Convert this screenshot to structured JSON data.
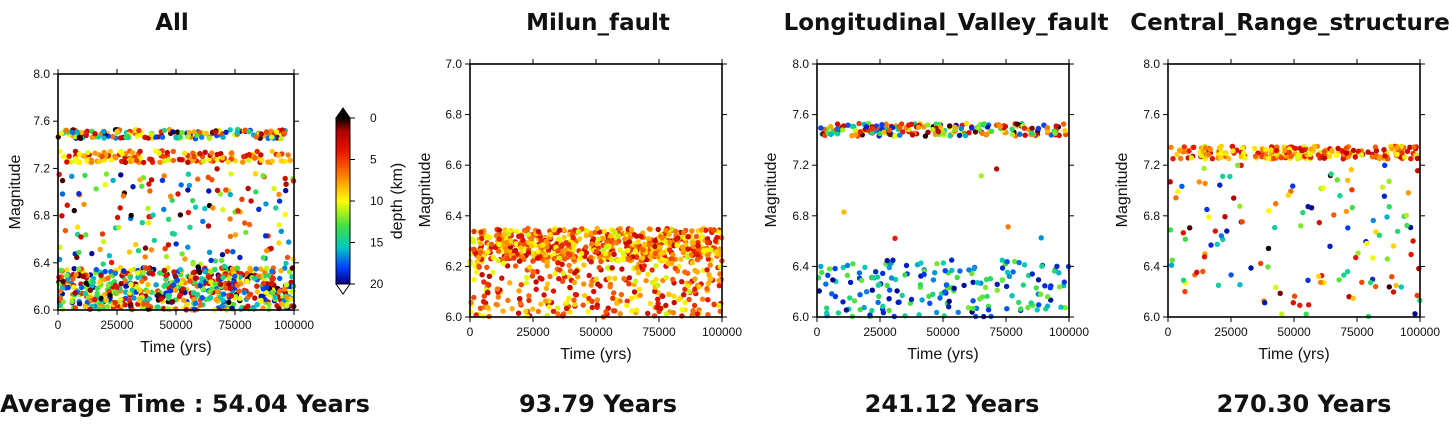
{
  "chart_data": [
    {
      "type": "scatter",
      "title": "All",
      "xlabel": "Time (yrs)",
      "ylabel": "Magnitude",
      "xlim": [
        0,
        100000
      ],
      "ylim": [
        6.0,
        8.0
      ],
      "xticks": [
        "0",
        "25000",
        "50000",
        "75000",
        "100000"
      ],
      "yticks": [
        "6.0",
        "6.4",
        "6.8",
        "7.2",
        "7.6",
        "8.0"
      ],
      "yticks_values": [
        6.0,
        6.4,
        6.8,
        7.2,
        7.6,
        8.0
      ],
      "clusters": [
        {
          "y_range": [
            6.0,
            6.36
          ],
          "count": 650,
          "depth": "mixed"
        },
        {
          "y_range": [
            6.36,
            7.2
          ],
          "count": 160,
          "depth": "mixed"
        },
        {
          "y_range": [
            7.25,
            7.35
          ],
          "count": 150,
          "depth": "shallow"
        },
        {
          "y_range": [
            7.45,
            7.53
          ],
          "count": 170,
          "depth": "mixed"
        }
      ],
      "annotation": "Average Time : 54.04 Years",
      "colorbar": {
        "label": "depth (km)",
        "min": 0,
        "max": 20,
        "ticks": [
          "0",
          "5",
          "10",
          "15",
          "20"
        ],
        "colors": [
          "#000000",
          "#d40000",
          "#ff8000",
          "#ffff00",
          "#00e060",
          "#0040ff",
          "#000080"
        ]
      }
    },
    {
      "type": "scatter",
      "title": "Milun_fault",
      "xlabel": "Time (yrs)",
      "ylabel": "Magnitude",
      "xlim": [
        0,
        100000
      ],
      "ylim": [
        6.0,
        7.0
      ],
      "xticks": [
        "0",
        "25000",
        "50000",
        "75000",
        "100000"
      ],
      "yticks": [
        "6.0",
        "6.2",
        "6.4",
        "6.6",
        "6.8",
        "7.0"
      ],
      "yticks_values": [
        6.0,
        6.2,
        6.4,
        6.6,
        6.8,
        7.0
      ],
      "clusters": [
        {
          "y_range": [
            6.22,
            6.35
          ],
          "count": 650,
          "depth": "shallow"
        },
        {
          "y_range": [
            6.0,
            6.22
          ],
          "count": 300,
          "depth": "shallow"
        }
      ],
      "annotation": "93.79 Years"
    },
    {
      "type": "scatter",
      "title": "Longitudinal_Valley_fault",
      "xlabel": "Time (yrs)",
      "ylabel": "Magnitude",
      "xlim": [
        0,
        100000
      ],
      "ylim": [
        6.0,
        8.0
      ],
      "xticks": [
        "0",
        "25000",
        "50000",
        "75000",
        "100000"
      ],
      "yticks": [
        "6.0",
        "6.4",
        "6.8",
        "7.2",
        "7.6",
        "8.0"
      ],
      "yticks_values": [
        6.0,
        6.4,
        6.8,
        7.2,
        7.6,
        8.0
      ],
      "clusters": [
        {
          "y_range": [
            7.43,
            7.53
          ],
          "count": 200,
          "depth": "mixed"
        },
        {
          "y_range": [
            6.0,
            6.45
          ],
          "count": 190,
          "depth": "deep"
        },
        {
          "y_range": [
            6.5,
            7.3
          ],
          "count": 6,
          "depth": "mixed"
        }
      ],
      "annotation": "241.12 Years"
    },
    {
      "type": "scatter",
      "title": "Central_Range_structure",
      "xlabel": "Time (yrs)",
      "ylabel": "Magnitude",
      "xlim": [
        0,
        100000
      ],
      "ylim": [
        6.0,
        8.0
      ],
      "xticks": [
        "0",
        "25000",
        "50000",
        "75000",
        "100000"
      ],
      "yticks": [
        "6.0",
        "6.4",
        "6.8",
        "7.2",
        "7.6",
        "8.0"
      ],
      "yticks_values": [
        6.0,
        6.4,
        6.8,
        7.2,
        7.6,
        8.0
      ],
      "clusters": [
        {
          "y_range": [
            7.25,
            7.35
          ],
          "count": 230,
          "depth": "shallow"
        },
        {
          "y_range": [
            6.0,
            7.2
          ],
          "count": 130,
          "depth": "mixed"
        }
      ],
      "annotation": "270.30 Years"
    }
  ]
}
